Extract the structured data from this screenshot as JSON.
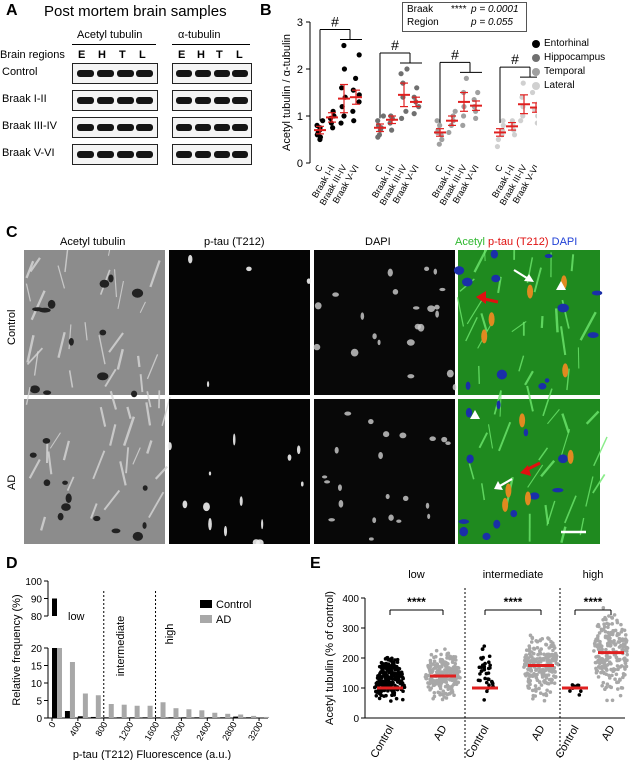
{
  "panelA": {
    "letter": "A",
    "title": "Post mortem brain samples",
    "col_headers": [
      "Acetyl tubulin",
      "α-tubulin"
    ],
    "regions_label": "Brain regions",
    "region_letters": [
      "E",
      "H",
      "T",
      "L"
    ],
    "rows": [
      "Control",
      "Braak I-II",
      "Braak III-IV",
      "Braak V-VI"
    ]
  },
  "panelB": {
    "letter": "B",
    "stats_box": [
      {
        "factor": "Braak",
        "stars": "****",
        "p": "p = 0.0001"
      },
      {
        "factor": "Region",
        "stars": "",
        "p": "p = 0.055"
      }
    ],
    "sig_mark": "#",
    "legend": [
      {
        "name": "Entorhinal",
        "color": "#000000"
      },
      {
        "name": "Hippocampus",
        "color": "#707070"
      },
      {
        "name": "Temporal",
        "color": "#a0a0a0"
      },
      {
        "name": "Lateral",
        "color": "#d0d0d0"
      }
    ]
  },
  "panelC": {
    "letter": "C",
    "channels": [
      "Acetyl tubulin",
      "p-tau (T212)",
      "DAPI"
    ],
    "merge_label": {
      "a": "Acetyl",
      "b": "p-tau (T212)",
      "c": "DAPI"
    },
    "rows": [
      "Control",
      "AD"
    ],
    "colors": {
      "green": "#2eb82e",
      "red": "#e01010",
      "blue": "#1f3fd6"
    }
  },
  "panelD": {
    "letter": "D"
  },
  "panelE": {
    "letter": "E"
  },
  "chart_data": [
    {
      "type": "scatter",
      "ylabel": "Acetyl tubulin / α-tubulin",
      "ylim": [
        0,
        3
      ],
      "yticks": [
        0,
        1,
        2,
        3
      ],
      "groups": [
        "Entorhinal",
        "Hippocampus",
        "Temporal",
        "Lateral"
      ],
      "categories": [
        "C",
        "Braak I-II",
        "Braak III-IV",
        "Braak V-VI"
      ],
      "series": [
        {
          "name": "Entorhinal",
          "means": [
            0.7,
            0.97,
            1.37,
            1.4
          ],
          "sem": [
            0.08,
            0.1,
            0.3,
            0.15
          ],
          "points": [
            [
              0.5,
              0.55,
              0.6,
              0.65,
              0.7,
              0.75,
              0.8,
              0.9
            ],
            [
              0.75,
              0.85,
              0.95,
              1.0,
              1.1
            ],
            [
              0.85,
              1.0,
              1.2,
              1.4,
              1.6,
              2.0,
              2.5
            ],
            [
              0.9,
              1.1,
              1.3,
              1.45,
              1.55,
              1.8,
              2.3
            ]
          ]
        },
        {
          "name": "Hippocampus",
          "means": [
            0.75,
            0.92,
            1.45,
            1.3
          ],
          "sem": [
            0.08,
            0.08,
            0.25,
            0.1
          ],
          "points": [
            [
              0.55,
              0.6,
              0.7,
              0.75,
              0.8,
              0.9,
              1.0
            ],
            [
              0.7,
              0.85,
              0.95,
              1.0
            ],
            [
              0.95,
              1.1,
              1.4,
              1.7,
              1.9,
              2.0
            ],
            [
              1.05,
              1.2,
              1.3,
              1.4,
              1.6
            ]
          ]
        },
        {
          "name": "Temporal",
          "means": [
            0.65,
            0.9,
            1.3,
            1.22
          ],
          "sem": [
            0.08,
            0.1,
            0.2,
            0.1
          ],
          "points": [
            [
              0.4,
              0.5,
              0.6,
              0.65,
              0.7,
              0.8,
              0.9
            ],
            [
              0.65,
              0.8,
              0.9,
              1.0,
              1.1
            ],
            [
              0.8,
              1.0,
              1.2,
              1.5,
              1.8
            ],
            [
              0.95,
              1.1,
              1.2,
              1.35,
              1.5
            ]
          ]
        },
        {
          "name": "Lateral",
          "means": [
            0.65,
            0.78,
            1.25,
            1.18
          ],
          "sem": [
            0.08,
            0.08,
            0.2,
            0.1
          ],
          "points": [
            [
              0.35,
              0.5,
              0.6,
              0.7,
              0.8,
              0.9
            ],
            [
              0.6,
              0.7,
              0.8,
              0.9
            ],
            [
              0.9,
              1.0,
              1.2,
              1.4,
              1.7
            ],
            [
              0.85,
              1.0,
              1.15,
              1.3,
              1.5
            ]
          ]
        }
      ]
    },
    {
      "type": "bar",
      "xlabel": "p-tau (T212) Fluorescence (a.u.)",
      "ylabel": "Relative frequency (%)",
      "bins": [
        0,
        200,
        400,
        600,
        800,
        1000,
        1200,
        1400,
        1600,
        1800,
        2000,
        2200,
        2400,
        2600,
        2800,
        3000,
        3200
      ],
      "xticks": [
        "0",
        "400",
        "800",
        "1200",
        "1600",
        "2000",
        "2400",
        "2800",
        "3200"
      ],
      "yticks_lower": [
        0,
        5,
        10,
        15,
        20
      ],
      "yticks_upper": [
        80,
        90,
        100
      ],
      "thresholds": [
        800,
        1600
      ],
      "region_labels": [
        "low",
        "intermediate",
        "high"
      ],
      "series": [
        {
          "name": "Control",
          "color": "#000000",
          "values": [
            90,
            2,
            0.5,
            0.3,
            0.2,
            0.2,
            0.2,
            0.2,
            0.2,
            0.2,
            0.2,
            0.2,
            0.2,
            0.2,
            0.4,
            0.2,
            0.1
          ]
        },
        {
          "name": "AD",
          "color": "#a8a8a8",
          "values": [
            20,
            16,
            7,
            6.5,
            4,
            3.8,
            3.5,
            3.5,
            4.5,
            2.8,
            2.5,
            2.2,
            1.5,
            1.2,
            1.0,
            0.6,
            0.3
          ]
        }
      ]
    },
    {
      "type": "scatter",
      "ylabel": "Acetyl tubulin (% of control)",
      "ylim": [
        0,
        400
      ],
      "yticks": [
        0,
        100,
        200,
        300,
        400
      ],
      "groups": [
        "low",
        "intermediate",
        "high"
      ],
      "categories": [
        "Control",
        "AD"
      ],
      "sig": "****",
      "means": [
        [
          100,
          140
        ],
        [
          100,
          175
        ],
        [
          100,
          218
        ]
      ],
      "spread": [
        [
          [
            30,
            230
          ],
          [
            40,
            250
          ]
        ],
        [
          [
            40,
            270
          ],
          [
            30,
            310
          ]
        ],
        [
          [
            70,
            130
          ],
          [
            40,
            395
          ]
        ]
      ],
      "counts": [
        [
          220,
          220
        ],
        [
          40,
          260
        ],
        [
          8,
          300
        ]
      ]
    }
  ]
}
